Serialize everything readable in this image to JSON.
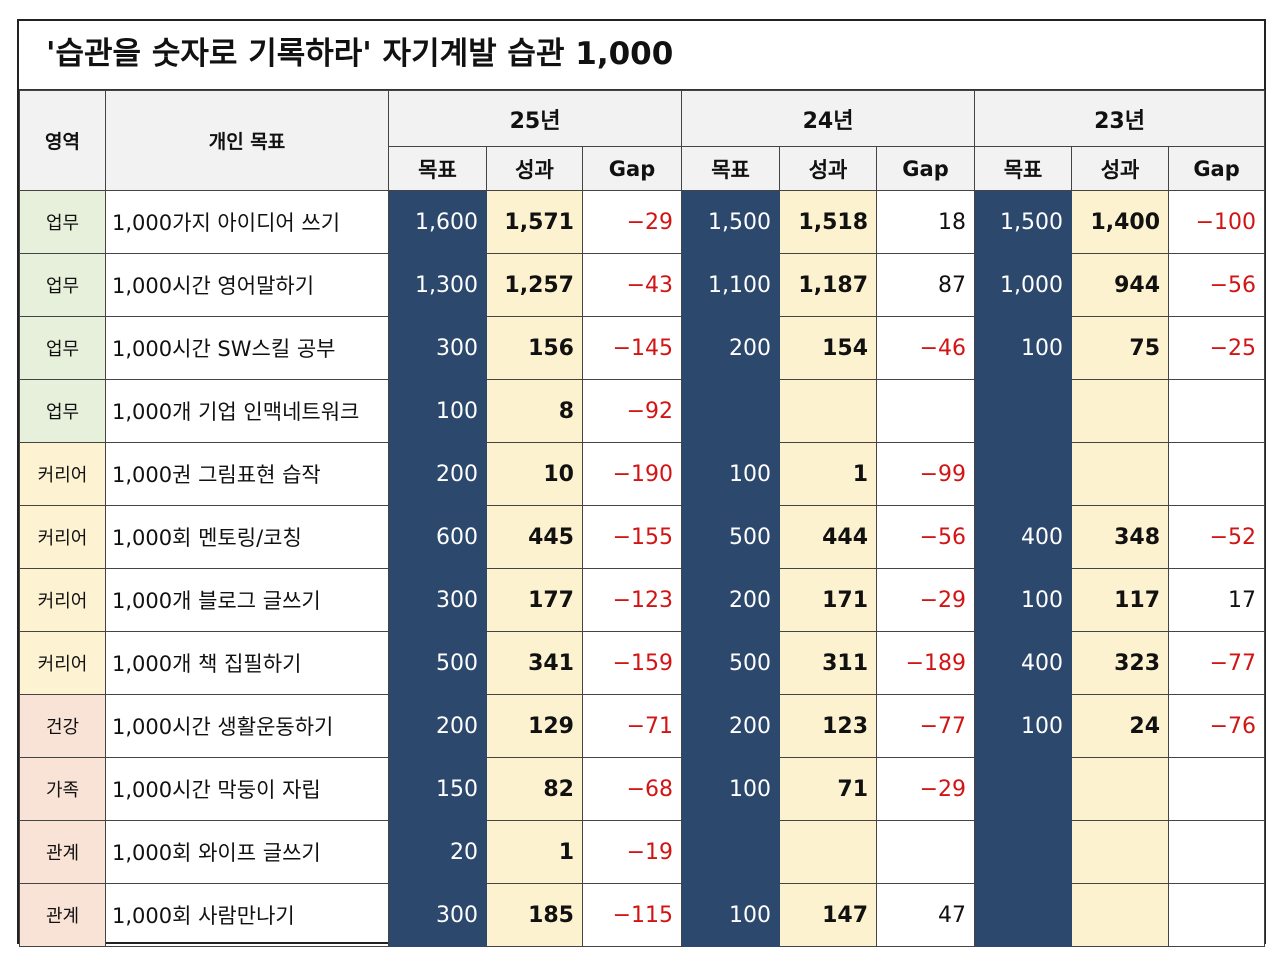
{
  "title": "'습관을 숫자로 기록하라'  자기계발 습관 1,000",
  "headers": {
    "area": "영역",
    "goal": "개인 목표",
    "years": [
      "25년",
      "24년",
      "23년"
    ],
    "sub": [
      "목표",
      "성과",
      "Gap"
    ]
  },
  "rows": [
    {
      "area": "업무",
      "goal": "1,000가지 아이디어 쓰기",
      "y25": [
        "1,600",
        "1,571",
        "−29"
      ],
      "y24": [
        "1,500",
        "1,518",
        "18"
      ],
      "y23": [
        "1,500",
        "1,400",
        "−100"
      ]
    },
    {
      "area": "업무",
      "goal": "1,000시간 영어말하기",
      "y25": [
        "1,300",
        "1,257",
        "−43"
      ],
      "y24": [
        "1,100",
        "1,187",
        "87"
      ],
      "y23": [
        "1,000",
        "944",
        "−56"
      ]
    },
    {
      "area": "업무",
      "goal": "1,000시간 SW스킬 공부",
      "y25": [
        "300",
        "156",
        "−145"
      ],
      "y24": [
        "200",
        "154",
        "−46"
      ],
      "y23": [
        "100",
        "75",
        "−25"
      ]
    },
    {
      "area": "업무",
      "goal": "1,000개 기업 인맥네트워크",
      "y25": [
        "100",
        "8",
        "−92"
      ],
      "y24": [
        "",
        "",
        ""
      ],
      "y23": [
        "",
        "",
        ""
      ]
    },
    {
      "area": "커리어",
      "goal": "1,000권 그림표현 습작",
      "y25": [
        "200",
        "10",
        "−190"
      ],
      "y24": [
        "100",
        "1",
        "−99"
      ],
      "y23": [
        "",
        "",
        ""
      ]
    },
    {
      "area": "커리어",
      "goal": "1,000회 멘토링/코칭",
      "y25": [
        "600",
        "445",
        "−155"
      ],
      "y24": [
        "500",
        "444",
        "−56"
      ],
      "y23": [
        "400",
        "348",
        "−52"
      ]
    },
    {
      "area": "커리어",
      "goal": "1,000개 블로그 글쓰기",
      "y25": [
        "300",
        "177",
        "−123"
      ],
      "y24": [
        "200",
        "171",
        "−29"
      ],
      "y23": [
        "100",
        "117",
        "17"
      ]
    },
    {
      "area": "커리어",
      "goal": "1,000개 책 집필하기",
      "y25": [
        "500",
        "341",
        "−159"
      ],
      "y24": [
        "500",
        "311",
        "−189"
      ],
      "y23": [
        "400",
        "323",
        "−77"
      ]
    },
    {
      "area": "건강",
      "goal": "1,000시간 생활운동하기",
      "y25": [
        "200",
        "129",
        "−71"
      ],
      "y24": [
        "200",
        "123",
        "−77"
      ],
      "y23": [
        "100",
        "24",
        "−76"
      ]
    },
    {
      "area": "가족",
      "goal": "1,000시간 막둥이 자립",
      "y25": [
        "150",
        "82",
        "−68"
      ],
      "y24": [
        "100",
        "71",
        "−29"
      ],
      "y23": [
        "",
        "",
        ""
      ]
    },
    {
      "area": "관계",
      "goal": "1,000회 와이프 글쓰기",
      "y25": [
        "20",
        "1",
        "−19"
      ],
      "y24": [
        "",
        "",
        ""
      ],
      "y23": [
        "",
        "",
        ""
      ]
    },
    {
      "area": "관계",
      "goal": "1,000회 사람만나기",
      "y25": [
        "300",
        "185",
        "−115"
      ],
      "y24": [
        "100",
        "147",
        "47"
      ],
      "y23": [
        "",
        "",
        ""
      ]
    }
  ],
  "colors": {
    "target_bg": "#2c486d",
    "result_bg": "#fdf2cf",
    "negative_text": "#d21414",
    "area_work": "#e6f0da",
    "area_career": "#fdf3d3",
    "area_life": "#f9e3d6"
  }
}
